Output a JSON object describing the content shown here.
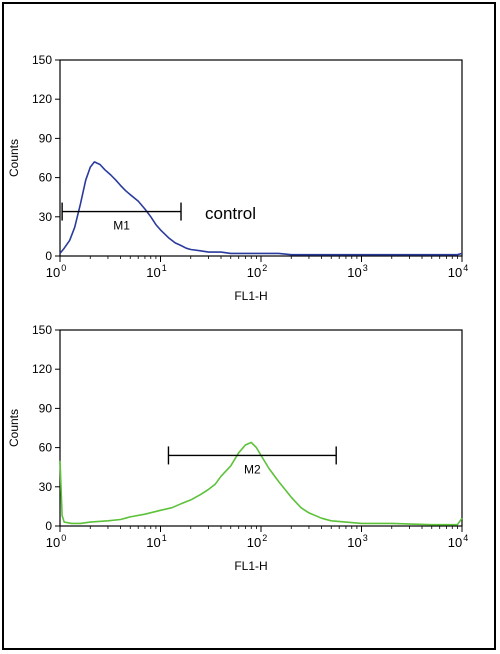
{
  "chart_data": [
    {
      "type": "line",
      "panel": "top",
      "xlabel": "FL1-H",
      "ylabel": "Counts",
      "x_scale": "log",
      "xlim": [
        1,
        10000
      ],
      "ylim": [
        0,
        150
      ],
      "yticks": [
        0,
        30,
        60,
        90,
        120,
        150
      ],
      "xticks": [
        {
          "base": "10",
          "exp": "0",
          "value": 1
        },
        {
          "base": "10",
          "exp": "1",
          "value": 10
        },
        {
          "base": "10",
          "exp": "2",
          "value": 100
        },
        {
          "base": "10",
          "exp": "3",
          "value": 1000
        },
        {
          "base": "10",
          "exp": "4",
          "value": 10000
        }
      ],
      "series": [
        {
          "color": "#2a3b9c",
          "x": [
            1.0,
            1.1,
            1.25,
            1.4,
            1.6,
            1.8,
            2.0,
            2.2,
            2.5,
            2.8,
            3.2,
            3.6,
            4.0,
            4.5,
            5.0,
            6.0,
            7.0,
            8.0,
            9.0,
            10,
            12,
            14,
            16,
            18,
            20,
            25,
            30,
            40,
            50,
            70,
            100,
            150,
            200,
            300,
            500,
            700,
            1000,
            2000,
            5000,
            9000,
            10000
          ],
          "y": [
            2,
            6,
            12,
            22,
            40,
            58,
            68,
            72,
            70,
            66,
            62,
            58,
            54,
            50,
            47,
            42,
            36,
            30,
            24,
            20,
            14,
            10,
            8,
            6,
            5,
            4,
            3,
            3,
            2,
            2,
            2,
            2,
            1,
            1,
            1,
            1,
            1,
            1,
            1,
            1,
            2
          ]
        }
      ],
      "marker": {
        "label": "M1",
        "x_start": 1.05,
        "x_end": 16,
        "y": 34
      },
      "annotation": "control"
    },
    {
      "type": "line",
      "panel": "bottom",
      "xlabel": "FL1-H",
      "ylabel": "Counts",
      "x_scale": "log",
      "xlim": [
        1,
        10000
      ],
      "ylim": [
        0,
        150
      ],
      "yticks": [
        0,
        30,
        60,
        90,
        120,
        150
      ],
      "xticks": [
        {
          "base": "10",
          "exp": "0",
          "value": 1
        },
        {
          "base": "10",
          "exp": "1",
          "value": 10
        },
        {
          "base": "10",
          "exp": "2",
          "value": 100
        },
        {
          "base": "10",
          "exp": "3",
          "value": 1000
        },
        {
          "base": "10",
          "exp": "4",
          "value": 10000
        }
      ],
      "series": [
        {
          "color": "#5cc23a",
          "x": [
            1.0,
            1.05,
            1.1,
            1.3,
            1.6,
            2.0,
            3.0,
            4.0,
            5.0,
            7.0,
            10,
            13,
            16,
            20,
            25,
            30,
            35,
            40,
            50,
            60,
            70,
            80,
            90,
            100,
            120,
            150,
            200,
            250,
            300,
            400,
            500,
            700,
            1000,
            2000,
            5000,
            9000,
            10000
          ],
          "y": [
            50,
            8,
            3,
            2,
            2,
            3,
            4,
            5,
            7,
            9,
            12,
            14,
            17,
            20,
            24,
            28,
            32,
            38,
            46,
            56,
            62,
            64,
            60,
            54,
            44,
            34,
            22,
            14,
            10,
            6,
            4,
            3,
            2,
            2,
            1,
            1,
            6
          ]
        }
      ],
      "marker": {
        "label": "M2",
        "x_start": 12,
        "x_end": 560,
        "y": 54
      }
    }
  ]
}
